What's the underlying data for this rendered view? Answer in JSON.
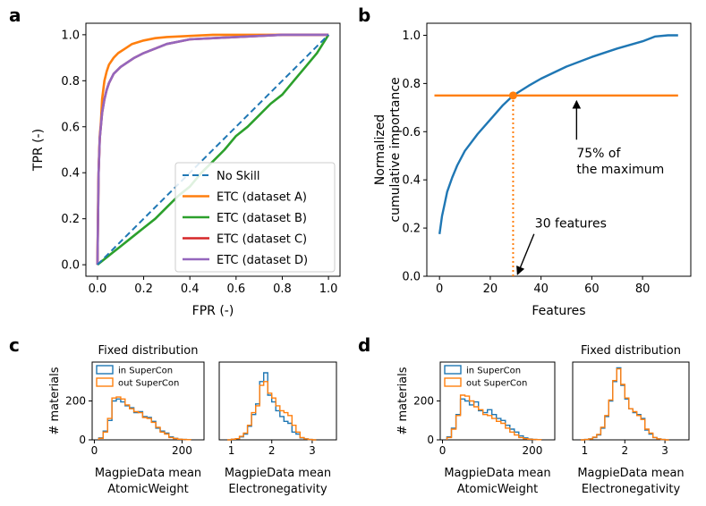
{
  "panel_letters": [
    "a",
    "b",
    "c",
    "d"
  ],
  "colors": {
    "no_skill": "#1f77b4",
    "etc_a": "#ff7f0e",
    "etc_b": "#2ca02c",
    "etc_c": "#d62728",
    "etc_d": "#9467bd",
    "in": "#1f77b4",
    "out": "#ff7f0e"
  },
  "chart_data": [
    {
      "id": "a",
      "type": "line",
      "xlabel": "FPR (-)",
      "ylabel": "TPR (-)",
      "xlim": [
        -0.05,
        1.05
      ],
      "ylim": [
        -0.05,
        1.05
      ],
      "xticks": [
        "0.0",
        "0.2",
        "0.4",
        "0.6",
        "0.8",
        "1.0"
      ],
      "yticks": [
        "0.0",
        "0.2",
        "0.4",
        "0.6",
        "0.8",
        "1.0"
      ],
      "legend_position": "lower-right",
      "series": [
        {
          "name": "No Skill",
          "style": "dashed",
          "color": "#1f77b4",
          "x": [
            0,
            1
          ],
          "y": [
            0,
            1
          ]
        },
        {
          "name": "ETC (dataset A)",
          "color": "#ff7f0e",
          "x": [
            0,
            0.003,
            0.006,
            0.01,
            0.015,
            0.02,
            0.03,
            0.04,
            0.05,
            0.07,
            0.09,
            0.12,
            0.15,
            0.2,
            0.25,
            0.3,
            0.4,
            0.5,
            0.6,
            0.8,
            1.0
          ],
          "y": [
            0,
            0.3,
            0.45,
            0.56,
            0.62,
            0.72,
            0.8,
            0.84,
            0.87,
            0.9,
            0.92,
            0.94,
            0.96,
            0.975,
            0.985,
            0.99,
            0.995,
            1.0,
            1.0,
            1.0,
            1.0
          ]
        },
        {
          "name": "ETC (dataset B)",
          "color": "#2ca02c",
          "x": [
            0,
            0.05,
            0.1,
            0.15,
            0.2,
            0.25,
            0.3,
            0.35,
            0.4,
            0.45,
            0.5,
            0.55,
            0.6,
            0.65,
            0.7,
            0.75,
            0.8,
            0.85,
            0.9,
            0.95,
            1.0
          ],
          "y": [
            0,
            0.04,
            0.08,
            0.12,
            0.16,
            0.2,
            0.25,
            0.3,
            0.34,
            0.4,
            0.45,
            0.5,
            0.56,
            0.6,
            0.65,
            0.7,
            0.74,
            0.8,
            0.86,
            0.92,
            1.0
          ]
        },
        {
          "name": "ETC (dataset C)",
          "color": "#d62728",
          "x": [
            0,
            0.005,
            0.01,
            0.02,
            0.03,
            0.04,
            0.05,
            0.07,
            0.1,
            0.13,
            0.16,
            0.2,
            0.25,
            0.3,
            0.35,
            0.4,
            0.5,
            0.6,
            0.7,
            0.8,
            0.9,
            1.0
          ],
          "y": [
            0,
            0.4,
            0.55,
            0.66,
            0.72,
            0.76,
            0.79,
            0.83,
            0.86,
            0.88,
            0.9,
            0.92,
            0.94,
            0.96,
            0.97,
            0.98,
            0.985,
            0.99,
            0.995,
            1.0,
            1.0,
            1.0
          ]
        },
        {
          "name": "ETC (dataset D)",
          "color": "#9467bd",
          "x": [
            0,
            0.005,
            0.01,
            0.02,
            0.03,
            0.04,
            0.05,
            0.07,
            0.1,
            0.13,
            0.16,
            0.2,
            0.25,
            0.3,
            0.35,
            0.4,
            0.5,
            0.6,
            0.7,
            0.8,
            0.9,
            1.0
          ],
          "y": [
            0,
            0.4,
            0.55,
            0.66,
            0.72,
            0.76,
            0.79,
            0.83,
            0.86,
            0.88,
            0.9,
            0.92,
            0.94,
            0.96,
            0.97,
            0.98,
            0.985,
            0.99,
            0.995,
            1.0,
            1.0,
            1.0
          ]
        }
      ]
    },
    {
      "id": "b",
      "type": "line",
      "xlabel": "Features",
      "ylabel_lines": [
        "Normalized",
        "cumulative importance"
      ],
      "xlim": [
        -5,
        99
      ],
      "ylim": [
        0,
        1.05
      ],
      "xticks": [
        "0",
        "20",
        "40",
        "60",
        "80"
      ],
      "yticks": [
        "0.0",
        "0.2",
        "0.4",
        "0.6",
        "0.8",
        "1.0"
      ],
      "series": [
        {
          "name": "cumulative",
          "color": "#1f77b4",
          "x": [
            0,
            1,
            2,
            3,
            5,
            7,
            10,
            15,
            20,
            25,
            29,
            35,
            40,
            50,
            60,
            70,
            80,
            85,
            90,
            94
          ],
          "y": [
            0.175,
            0.25,
            0.3,
            0.35,
            0.41,
            0.46,
            0.52,
            0.59,
            0.65,
            0.71,
            0.75,
            0.79,
            0.82,
            0.87,
            0.91,
            0.945,
            0.975,
            0.995,
            1.0,
            1.0
          ]
        }
      ],
      "threshold": {
        "y": 0.75,
        "x_start": -2,
        "x_end": 94,
        "color": "#ff7f0e"
      },
      "marker": {
        "x": 29,
        "y": 0.75
      },
      "vline": {
        "x": 29,
        "y0": 0,
        "y1": 0.75
      },
      "annotations": [
        {
          "lines": [
            "75% of",
            "the maximum"
          ],
          "text_x": 54,
          "text_y": 0.5,
          "arrow_to_x": 54,
          "arrow_to_y": 0.75
        },
        {
          "lines": [
            "30 features"
          ],
          "text_x": 39,
          "text_y": 0.22,
          "arrow_to_x": 30,
          "arrow_to_y": 0.0
        }
      ]
    },
    {
      "id": "c-left",
      "type": "histogram",
      "title": "Fixed distribution",
      "xlabel_lines": [
        "MagpieData mean",
        "AtomicWeight"
      ],
      "ylabel": "# materials",
      "xlim": [
        -5,
        250
      ],
      "ylim": [
        0,
        400
      ],
      "xticks": [
        0,
        200
      ],
      "xtick_labels": [
        "0",
        "200"
      ],
      "yticks": [
        0,
        200
      ],
      "ytick_labels": [
        "0",
        "200"
      ],
      "legend": [
        "in SuperCon",
        "out SuperCon"
      ],
      "bin_start": 10,
      "bin_width": 10,
      "series": [
        {
          "name": "in SuperCon",
          "values": [
            10,
            45,
            100,
            200,
            210,
            195,
            175,
            165,
            140,
            145,
            120,
            115,
            95,
            60,
            45,
            35,
            15,
            8,
            3,
            2,
            1
          ]
        },
        {
          "name": "out SuperCon",
          "values": [
            8,
            40,
            110,
            215,
            220,
            210,
            180,
            160,
            145,
            140,
            115,
            110,
            90,
            65,
            40,
            30,
            12,
            7,
            3,
            2,
            1
          ]
        }
      ]
    },
    {
      "id": "c-right",
      "type": "histogram",
      "xlabel_lines": [
        "MagpieData mean",
        "Electronegativity"
      ],
      "xlim": [
        0.7,
        3.6
      ],
      "ylim": [
        0,
        400
      ],
      "xticks": [
        1,
        2,
        3
      ],
      "xtick_labels": [
        "1",
        "2",
        "3"
      ],
      "bin_start": 0.9,
      "bin_width": 0.1,
      "series": [
        {
          "name": "in SuperCon",
          "values": [
            0,
            3,
            5,
            15,
            30,
            70,
            130,
            185,
            300,
            345,
            230,
            195,
            150,
            120,
            95,
            85,
            40,
            30,
            10,
            5,
            2,
            0
          ]
        },
        {
          "name": "out SuperCon",
          "values": [
            0,
            3,
            6,
            18,
            35,
            75,
            140,
            175,
            280,
            300,
            240,
            215,
            175,
            150,
            140,
            125,
            75,
            40,
            12,
            5,
            2,
            0
          ]
        }
      ]
    },
    {
      "id": "d-left",
      "type": "histogram",
      "xlabel_lines": [
        "MagpieData mean",
        "AtomicWeight"
      ],
      "ylabel": "# materials",
      "xlim": [
        -5,
        250
      ],
      "ylim": [
        0,
        400
      ],
      "xticks": [
        0,
        200
      ],
      "xtick_labels": [
        "0",
        "200"
      ],
      "yticks": [
        0,
        200
      ],
      "ytick_labels": [
        "0",
        "200"
      ],
      "legend": [
        "in SuperCon",
        "out SuperCon"
      ],
      "bin_start": 10,
      "bin_width": 10,
      "series": [
        {
          "name": "in SuperCon",
          "values": [
            15,
            60,
            130,
            210,
            200,
            180,
            195,
            150,
            140,
            155,
            130,
            110,
            100,
            75,
            55,
            40,
            20,
            10,
            4,
            2,
            1
          ]
        },
        {
          "name": "out SuperCon",
          "values": [
            12,
            55,
            125,
            230,
            225,
            200,
            170,
            155,
            130,
            125,
            110,
            95,
            85,
            60,
            40,
            25,
            12,
            6,
            3,
            2,
            1
          ]
        }
      ]
    },
    {
      "id": "d-right",
      "type": "histogram",
      "title": "Fixed distribution",
      "xlabel_lines": [
        "MagpieData mean",
        "Electronegativity"
      ],
      "xlim": [
        0.7,
        3.6
      ],
      "ylim": [
        0,
        400
      ],
      "xticks": [
        1,
        2,
        3
      ],
      "xtick_labels": [
        "1",
        "2",
        "3"
      ],
      "bin_start": 0.9,
      "bin_width": 0.1,
      "series": [
        {
          "name": "in SuperCon",
          "values": [
            0,
            2,
            5,
            12,
            25,
            60,
            120,
            200,
            300,
            370,
            280,
            210,
            160,
            140,
            130,
            110,
            50,
            30,
            12,
            5,
            2,
            0
          ]
        },
        {
          "name": "out SuperCon",
          "values": [
            0,
            2,
            5,
            14,
            28,
            65,
            125,
            205,
            305,
            365,
            285,
            215,
            160,
            145,
            125,
            105,
            55,
            35,
            12,
            5,
            2,
            0
          ]
        }
      ]
    }
  ]
}
